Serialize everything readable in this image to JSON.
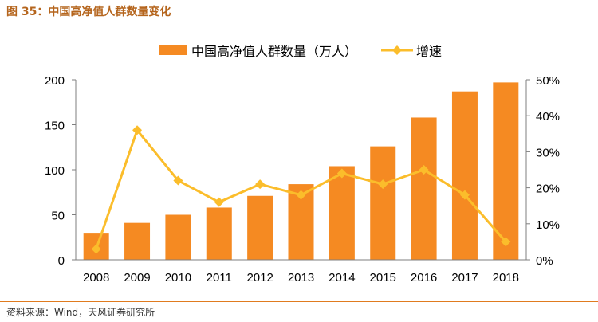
{
  "figure": {
    "title": "图 35：中国高净值人群数量变化",
    "source": "资料来源：Wind，天风证券研究所"
  },
  "colors": {
    "bar": "#f58a22",
    "line": "#fbbd2b",
    "accent_rule": "#e07b1f",
    "title": "#b5651d"
  },
  "chart_data": {
    "type": "bar",
    "categories": [
      "2008",
      "2009",
      "2010",
      "2011",
      "2012",
      "2013",
      "2014",
      "2015",
      "2016",
      "2017",
      "2018"
    ],
    "series": [
      {
        "name": "中国高净值人群数量（万人）",
        "type": "bar",
        "axis": "left",
        "values": [
          30,
          41,
          50,
          58,
          71,
          84,
          104,
          126,
          158,
          187,
          197
        ]
      },
      {
        "name": "增速",
        "type": "line",
        "axis": "right",
        "marker": "diamond",
        "values": [
          0.03,
          0.36,
          0.22,
          0.16,
          0.21,
          0.18,
          0.24,
          0.21,
          0.25,
          0.18,
          0.05
        ]
      }
    ],
    "y_left": {
      "lim": [
        0,
        200
      ],
      "ticks": [
        "0",
        "50",
        "100",
        "150",
        "200"
      ]
    },
    "y_right": {
      "lim": [
        0,
        0.5
      ],
      "ticks": [
        "0%",
        "10%",
        "20%",
        "30%",
        "40%",
        "50%"
      ]
    },
    "legend_position": "top-center",
    "grid": false
  }
}
